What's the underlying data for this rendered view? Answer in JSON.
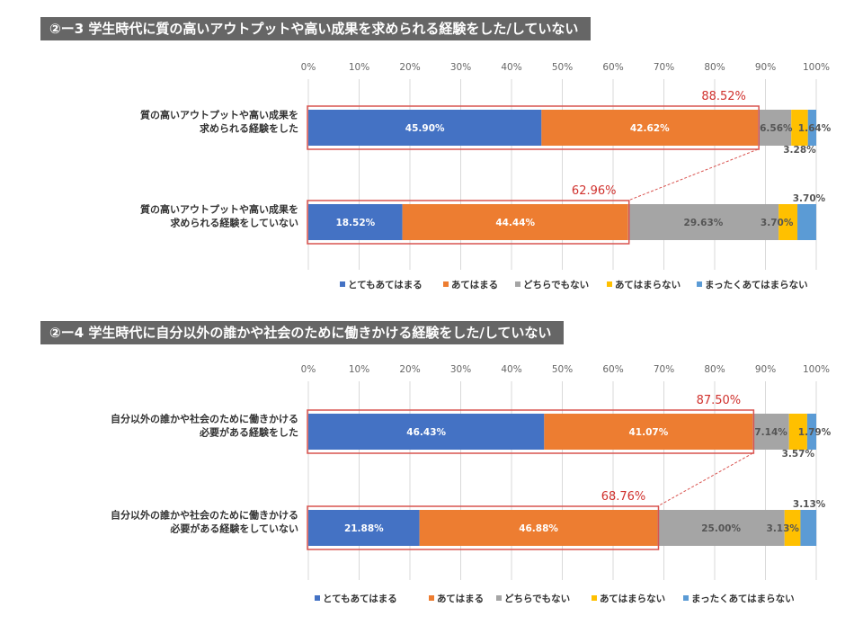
{
  "chart_data": [
    {
      "type": "stacked-bar-horizontal",
      "title": "②ー3  学生時代に質の高いアウトプットや高い成果を求められる経験をした/していない",
      "x_ticks": [
        "0%",
        "10%",
        "20%",
        "30%",
        "40%",
        "50%",
        "60%",
        "70%",
        "80%",
        "90%",
        "100%"
      ],
      "xlim": [
        0,
        100
      ],
      "categories": [
        [
          "質の高いアウトプットや高い成果を",
          "求められる経験をした"
        ],
        [
          "質の高いアウトプットや高い成果を",
          "求められる経験をしていない"
        ]
      ],
      "series": [
        {
          "name": "とてもあてはまる",
          "color": "#4472c4",
          "values": [
            45.9,
            18.52
          ],
          "labels": [
            "45.90%",
            "18.52%"
          ]
        },
        {
          "name": "あてはまる",
          "color": "#ed7d31",
          "values": [
            42.62,
            44.44
          ],
          "labels": [
            "42.62%",
            "44.44%"
          ]
        },
        {
          "name": "どちらでもない",
          "color": "#a5a5a5",
          "values": [
            6.56,
            29.63
          ],
          "labels": [
            "6.56%",
            "29.63%"
          ]
        },
        {
          "name": "あてはまらない",
          "color": "#ffc000",
          "values": [
            3.28,
            3.7
          ],
          "labels": [
            "3.28%",
            "3.70%"
          ]
        },
        {
          "name": "まったくあてはまらない",
          "color": "#5b9bd5",
          "values": [
            1.64,
            3.7
          ],
          "labels": [
            "1.64%",
            "3.70%"
          ]
        }
      ],
      "highlight_totals": [
        "88.52%",
        "62.96%"
      ]
    },
    {
      "type": "stacked-bar-horizontal",
      "title": "②ー4  学生時代に自分以外の誰かや社会のために働きかける経験をした/していない",
      "x_ticks": [
        "0%",
        "10%",
        "20%",
        "30%",
        "40%",
        "50%",
        "60%",
        "70%",
        "80%",
        "90%",
        "100%"
      ],
      "xlim": [
        0,
        100
      ],
      "categories": [
        [
          "自分以外の誰かや社会のために働きかける",
          "必要がある経験をした"
        ],
        [
          "自分以外の誰かや社会のために働きかける",
          "必要がある経験をしていない"
        ]
      ],
      "series": [
        {
          "name": "とてもあてはまる",
          "color": "#4472c4",
          "values": [
            46.43,
            21.88
          ],
          "labels": [
            "46.43%",
            "21.88%"
          ]
        },
        {
          "name": "あてはまる",
          "color": "#ed7d31",
          "values": [
            41.07,
            46.88
          ],
          "labels": [
            "41.07%",
            "46.88%"
          ]
        },
        {
          "name": "どちらでもない",
          "color": "#a5a5a5",
          "values": [
            7.14,
            25.0
          ],
          "labels": [
            "7.14%",
            "25.00%"
          ]
        },
        {
          "name": "あてはまらない",
          "color": "#ffc000",
          "values": [
            3.57,
            3.13
          ],
          "labels": [
            "3.57%",
            "3.13%"
          ]
        },
        {
          "name": "まったくあてはまらない",
          "color": "#5b9bd5",
          "values": [
            1.79,
            3.13
          ],
          "labels": [
            "1.79%",
            "3.13%"
          ]
        }
      ],
      "highlight_totals": [
        "87.50%",
        "68.76%"
      ]
    }
  ]
}
